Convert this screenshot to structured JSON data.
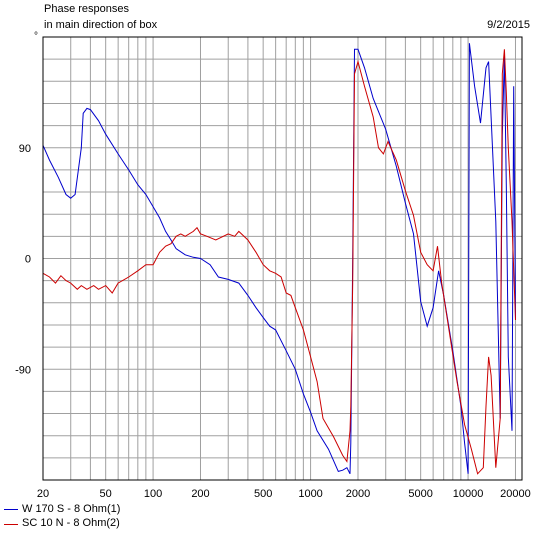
{
  "header": {
    "title_line1": "Phase responses",
    "title_line2": "in main direction of box",
    "date": "9/2/2015",
    "y_unit": "°"
  },
  "chart_data": {
    "type": "line",
    "x_scale": "log",
    "xlim": [
      20,
      22000
    ],
    "ylim": [
      -180,
      180
    ],
    "grid": true,
    "x_tick_labels": [
      "20",
      "50",
      "100",
      "200",
      "500",
      "1000",
      "2000",
      "5000",
      "10000",
      "20000"
    ],
    "x_ticks": [
      20,
      50,
      100,
      200,
      500,
      1000,
      2000,
      5000,
      10000,
      20000
    ],
    "y_ticks": [
      90,
      0,
      -90
    ],
    "y_tick_labels": [
      "90",
      "0",
      "-90"
    ],
    "legend_position": "bottom-left",
    "series": [
      {
        "name": "W 170 S - 8 Ohm(1)",
        "color": "#0000cc",
        "points": [
          [
            20,
            92
          ],
          [
            22,
            80
          ],
          [
            25,
            66
          ],
          [
            28,
            52
          ],
          [
            30,
            49
          ],
          [
            32,
            52
          ],
          [
            35,
            90
          ],
          [
            36,
            118
          ],
          [
            38,
            122
          ],
          [
            40,
            121
          ],
          [
            45,
            112
          ],
          [
            50,
            101
          ],
          [
            60,
            85
          ],
          [
            70,
            72
          ],
          [
            80,
            60
          ],
          [
            90,
            52
          ],
          [
            100,
            42
          ],
          [
            110,
            33
          ],
          [
            120,
            22
          ],
          [
            130,
            15
          ],
          [
            140,
            8
          ],
          [
            160,
            3
          ],
          [
            180,
            1
          ],
          [
            200,
            0
          ],
          [
            230,
            -5
          ],
          [
            260,
            -15
          ],
          [
            300,
            -17
          ],
          [
            350,
            -20
          ],
          [
            400,
            -30
          ],
          [
            450,
            -40
          ],
          [
            500,
            -48
          ],
          [
            550,
            -55
          ],
          [
            600,
            -58
          ],
          [
            700,
            -75
          ],
          [
            800,
            -90
          ],
          [
            900,
            -110
          ],
          [
            1000,
            -125
          ],
          [
            1100,
            -140
          ],
          [
            1300,
            -155
          ],
          [
            1500,
            -173
          ],
          [
            1600,
            -172
          ],
          [
            1700,
            -170
          ],
          [
            1780,
            -175
          ],
          [
            1800,
            -150
          ],
          [
            1850,
            0
          ],
          [
            1900,
            170
          ],
          [
            2000,
            170
          ],
          [
            2200,
            155
          ],
          [
            2500,
            130
          ],
          [
            3000,
            105
          ],
          [
            3500,
            75
          ],
          [
            4000,
            45
          ],
          [
            4500,
            20
          ],
          [
            5000,
            -35
          ],
          [
            5500,
            -55
          ],
          [
            6000,
            -40
          ],
          [
            6500,
            -10
          ],
          [
            7000,
            -30
          ],
          [
            8000,
            -75
          ],
          [
            9000,
            -120
          ],
          [
            9500,
            -150
          ],
          [
            10000,
            -175
          ],
          [
            10200,
            175
          ],
          [
            11000,
            140
          ],
          [
            12000,
            110
          ],
          [
            13000,
            155
          ],
          [
            13500,
            160
          ],
          [
            14000,
            115
          ],
          [
            15000,
            30
          ],
          [
            16000,
            -130
          ],
          [
            16500,
            100
          ],
          [
            17000,
            165
          ],
          [
            17500,
            60
          ],
          [
            18000,
            -80
          ],
          [
            19000,
            -140
          ],
          [
            19500,
            140
          ],
          [
            20000,
            -50
          ]
        ]
      },
      {
        "name": "SC 10 N - 8 Ohm(2)",
        "color": "#cc0000",
        "points": [
          [
            20,
            -12
          ],
          [
            22,
            -15
          ],
          [
            24,
            -20
          ],
          [
            26,
            -14
          ],
          [
            28,
            -18
          ],
          [
            30,
            -20
          ],
          [
            33,
            -25
          ],
          [
            35,
            -22
          ],
          [
            38,
            -25
          ],
          [
            42,
            -22
          ],
          [
            45,
            -25
          ],
          [
            50,
            -22
          ],
          [
            55,
            -28
          ],
          [
            60,
            -20
          ],
          [
            70,
            -15
          ],
          [
            80,
            -10
          ],
          [
            90,
            -5
          ],
          [
            100,
            -5
          ],
          [
            110,
            5
          ],
          [
            120,
            10
          ],
          [
            130,
            12
          ],
          [
            140,
            18
          ],
          [
            150,
            20
          ],
          [
            160,
            18
          ],
          [
            180,
            22
          ],
          [
            190,
            25
          ],
          [
            200,
            20
          ],
          [
            220,
            18
          ],
          [
            250,
            15
          ],
          [
            300,
            20
          ],
          [
            330,
            18
          ],
          [
            350,
            22
          ],
          [
            400,
            15
          ],
          [
            450,
            5
          ],
          [
            500,
            -5
          ],
          [
            550,
            -10
          ],
          [
            600,
            -12
          ],
          [
            650,
            -15
          ],
          [
            700,
            -28
          ],
          [
            750,
            -30
          ],
          [
            800,
            -40
          ],
          [
            900,
            -58
          ],
          [
            1000,
            -80
          ],
          [
            1100,
            -100
          ],
          [
            1200,
            -130
          ],
          [
            1400,
            -145
          ],
          [
            1600,
            -160
          ],
          [
            1700,
            -165
          ],
          [
            1780,
            -140
          ],
          [
            1800,
            -120
          ],
          [
            1850,
            -20
          ],
          [
            1900,
            150
          ],
          [
            2000,
            160
          ],
          [
            2200,
            140
          ],
          [
            2500,
            115
          ],
          [
            2700,
            90
          ],
          [
            2900,
            85
          ],
          [
            3100,
            95
          ],
          [
            3500,
            80
          ],
          [
            4000,
            55
          ],
          [
            4500,
            35
          ],
          [
            5000,
            5
          ],
          [
            5500,
            -5
          ],
          [
            6000,
            -10
          ],
          [
            6400,
            10
          ],
          [
            6800,
            -20
          ],
          [
            7500,
            -55
          ],
          [
            8500,
            -100
          ],
          [
            9500,
            -135
          ],
          [
            10500,
            -155
          ],
          [
            11500,
            -175
          ],
          [
            12500,
            -170
          ],
          [
            13000,
            -120
          ],
          [
            13500,
            -80
          ],
          [
            14000,
            -95
          ],
          [
            15000,
            -170
          ],
          [
            16000,
            -130
          ],
          [
            16500,
            150
          ],
          [
            17000,
            170
          ],
          [
            17500,
            135
          ],
          [
            18000,
            90
          ],
          [
            19000,
            30
          ],
          [
            20000,
            -50
          ]
        ]
      }
    ]
  }
}
